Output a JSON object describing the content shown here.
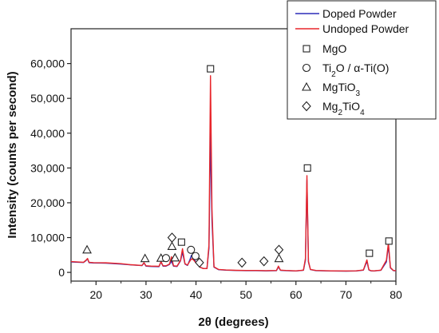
{
  "chart_data": {
    "type": "line",
    "title": "",
    "xlabel": "2θ (degrees)",
    "ylabel": "Intensity (counts per second)",
    "xlim": [
      15,
      80
    ],
    "ylim": [
      -2500,
      70000
    ],
    "x_ticks": [
      20,
      30,
      40,
      50,
      60,
      70,
      80
    ],
    "x_tick_labels": [
      "20",
      "30",
      "40",
      "50",
      "60",
      "70",
      "80"
    ],
    "y_ticks": [
      0,
      10000,
      20000,
      30000,
      40000,
      50000,
      60000
    ],
    "y_tick_labels": [
      "0",
      "10,000",
      "20,000",
      "30,000",
      "40,000",
      "50,000",
      "60,000"
    ],
    "legend_position": "top-right",
    "series": [
      {
        "name": "Doped Powder",
        "color": "#2b2bb8",
        "x": [
          15,
          17.5,
          18.0,
          18.3,
          18.6,
          19.5,
          22,
          25,
          27,
          29.2,
          29.6,
          30,
          31,
          32.6,
          33.0,
          33.4,
          34,
          34.7,
          35.1,
          35.5,
          36.2,
          36.9,
          37.3,
          37.8,
          38.3,
          38.8,
          39.1,
          39.5,
          39.9,
          40.3,
          40.8,
          41.5,
          42.2,
          42.6,
          42.9,
          43.2,
          43.6,
          44.5,
          46,
          48,
          50,
          52,
          54,
          56.1,
          56.5,
          56.9,
          58,
          60,
          61.5,
          61.9,
          62.2,
          62.5,
          62.9,
          64,
          67,
          70,
          72,
          73.5,
          74.2,
          74.6,
          75.0,
          75.6,
          77,
          78.1,
          78.5,
          78.9,
          79.5,
          80
        ],
        "values": [
          3000,
          2850,
          3400,
          3900,
          2800,
          2700,
          2650,
          2400,
          2150,
          1950,
          2700,
          1800,
          1700,
          1650,
          3000,
          1800,
          1800,
          2300,
          3200,
          1800,
          1700,
          3300,
          5800,
          2400,
          2000,
          3700,
          4900,
          4600,
          3000,
          2600,
          1500,
          1100,
          1100,
          7000,
          40000,
          15000,
          1500,
          800,
          650,
          550,
          500,
          500,
          450,
          500,
          1600,
          600,
          500,
          400,
          600,
          3500,
          26500,
          3000,
          800,
          500,
          400,
          350,
          400,
          650,
          3200,
          700,
          450,
          400,
          600,
          3000,
          7800,
          1300,
          500,
          450
        ]
      },
      {
        "name": "Undoped Powder",
        "color": "#e8262b",
        "x": [
          15,
          17.5,
          18.0,
          18.3,
          18.6,
          19.5,
          22,
          25,
          27,
          29.2,
          29.6,
          30,
          31,
          32.6,
          33.0,
          33.4,
          34,
          34.7,
          35.1,
          35.5,
          36.2,
          36.9,
          37.3,
          37.8,
          38.3,
          38.8,
          39.1,
          39.5,
          39.9,
          40.3,
          40.8,
          41.5,
          42.2,
          42.6,
          42.9,
          43.2,
          43.6,
          44.5,
          46,
          48,
          50,
          52,
          54,
          56.1,
          56.5,
          56.9,
          58,
          60,
          61.5,
          61.9,
          62.2,
          62.5,
          62.9,
          64,
          67,
          70,
          72,
          73.5,
          74.2,
          74.6,
          75.0,
          75.6,
          77,
          78.1,
          78.5,
          78.9,
          79.5,
          80
        ],
        "values": [
          3100,
          2900,
          3500,
          4000,
          2900,
          2800,
          2750,
          2500,
          2200,
          2000,
          2800,
          1900,
          1800,
          1750,
          3100,
          1900,
          1900,
          2400,
          4500,
          1900,
          1800,
          3400,
          6800,
          2500,
          2100,
          3300,
          3900,
          3600,
          2900,
          2600,
          1500,
          1100,
          1100,
          8000,
          56500,
          18000,
          1600,
          850,
          700,
          600,
          550,
          550,
          500,
          550,
          1800,
          650,
          550,
          450,
          650,
          4000,
          27800,
          3200,
          850,
          550,
          450,
          400,
          450,
          700,
          3600,
          750,
          500,
          450,
          650,
          3500,
          8500,
          1400,
          550,
          500
        ]
      }
    ],
    "markers": [
      {
        "phase": "MgTiO3",
        "symbol": "triangle",
        "x": 18.2,
        "y": 6500
      },
      {
        "phase": "MgTiO3",
        "symbol": "triangle",
        "x": 29.8,
        "y": 4000
      },
      {
        "phase": "MgTiO3",
        "symbol": "triangle",
        "x": 33.0,
        "y": 4100
      },
      {
        "phase": "MgTiO3",
        "symbol": "triangle",
        "x": 35.2,
        "y": 7500
      },
      {
        "phase": "MgTiO3",
        "symbol": "triangle",
        "x": 35.8,
        "y": 4200
      },
      {
        "phase": "MgTiO3",
        "symbol": "triangle",
        "x": 56.6,
        "y": 4000
      },
      {
        "phase": "Mg2TiO4",
        "symbol": "diamond",
        "x": 35.2,
        "y": 10000
      },
      {
        "phase": "Mg2TiO4",
        "symbol": "diamond",
        "x": 40.7,
        "y": 2800
      },
      {
        "phase": "Mg2TiO4",
        "symbol": "diamond",
        "x": 49.2,
        "y": 2800
      },
      {
        "phase": "Mg2TiO4",
        "symbol": "diamond",
        "x": 53.6,
        "y": 3200
      },
      {
        "phase": "Mg2TiO4",
        "symbol": "diamond",
        "x": 56.6,
        "y": 6500
      },
      {
        "phase": "Ti2O / α-Ti(O)",
        "symbol": "circle",
        "x": 34.0,
        "y": 4100
      },
      {
        "phase": "Ti2O / α-Ti(O)",
        "symbol": "circle",
        "x": 39.0,
        "y": 6500
      },
      {
        "phase": "Ti2O / α-Ti(O)",
        "symbol": "circle",
        "x": 39.9,
        "y": 4700
      },
      {
        "phase": "MgO",
        "symbol": "square",
        "x": 37.1,
        "y": 8700
      },
      {
        "phase": "MgO",
        "symbol": "square",
        "x": 42.9,
        "y": 58500
      },
      {
        "phase": "MgO",
        "symbol": "square",
        "x": 62.3,
        "y": 30000
      },
      {
        "phase": "MgO",
        "symbol": "square",
        "x": 74.7,
        "y": 5500
      },
      {
        "phase": "MgO",
        "symbol": "square",
        "x": 78.6,
        "y": 9000
      }
    ],
    "legend": {
      "lines": [
        {
          "label": "Doped Powder",
          "color": "#2b2bb8"
        },
        {
          "label": "Undoped Powder",
          "color": "#e8262b"
        }
      ],
      "symbols": [
        {
          "symbol": "square",
          "parts": [
            {
              "t": "MgO",
              "sub": false
            }
          ]
        },
        {
          "symbol": "circle",
          "parts": [
            {
              "t": "Ti",
              "sub": false
            },
            {
              "t": "2",
              "sub": true
            },
            {
              "t": "O / α-Ti(O)",
              "sub": false
            }
          ]
        },
        {
          "symbol": "triangle",
          "parts": [
            {
              "t": "MgTiO",
              "sub": false
            },
            {
              "t": "3",
              "sub": true
            }
          ]
        },
        {
          "symbol": "diamond",
          "parts": [
            {
              "t": "Mg",
              "sub": false
            },
            {
              "t": "2",
              "sub": true
            },
            {
              "t": "TiO",
              "sub": false
            },
            {
              "t": "4",
              "sub": true
            }
          ]
        }
      ]
    }
  }
}
